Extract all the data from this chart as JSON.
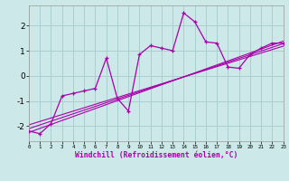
{
  "xlabel": "Windchill (Refroidissement éolien,°C)",
  "bg_color": "#cce8e8",
  "grid_color": "#aacece",
  "line_color": "#aa00aa",
  "x_data": [
    0,
    1,
    2,
    3,
    4,
    5,
    6,
    7,
    8,
    9,
    10,
    11,
    12,
    13,
    14,
    15,
    16,
    17,
    18,
    19,
    20,
    21,
    22,
    23
  ],
  "y_main": [
    -2.2,
    -2.3,
    -1.9,
    -0.8,
    -0.7,
    -0.6,
    -0.5,
    0.7,
    -0.9,
    -1.4,
    0.85,
    1.2,
    1.1,
    1.0,
    2.5,
    2.15,
    1.35,
    1.3,
    0.35,
    0.3,
    0.85,
    1.1,
    1.3,
    1.3
  ],
  "xlim": [
    0,
    23
  ],
  "ylim": [
    -2.6,
    2.8
  ],
  "yticks": [
    -2,
    -1,
    0,
    1,
    2
  ],
  "xticks": [
    0,
    1,
    2,
    3,
    4,
    5,
    6,
    7,
    8,
    9,
    10,
    11,
    12,
    13,
    14,
    15,
    16,
    17,
    18,
    19,
    20,
    21,
    22,
    23
  ],
  "reg_lines": [
    {
      "x0": 0,
      "y0": -2.25,
      "x1": 23,
      "y1": 1.38
    },
    {
      "x0": 0,
      "y0": -2.1,
      "x1": 23,
      "y1": 1.28
    },
    {
      "x0": 0,
      "y0": -1.95,
      "x1": 23,
      "y1": 1.18
    }
  ]
}
